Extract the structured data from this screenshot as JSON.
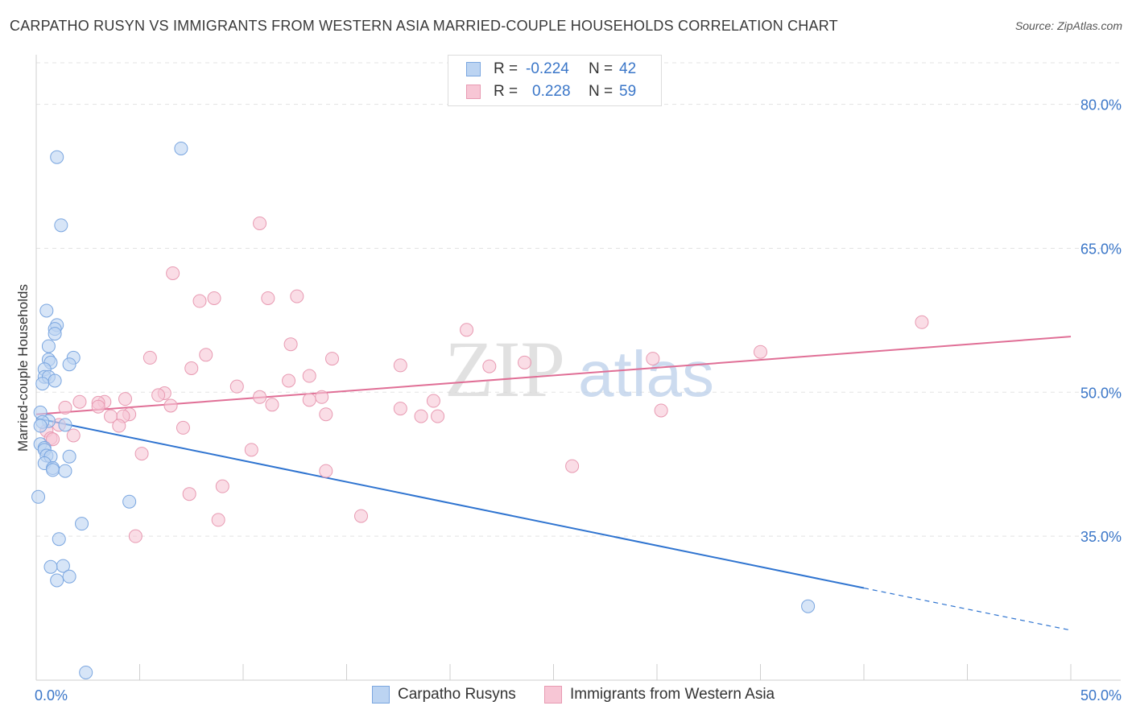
{
  "title": "CARPATHO RUSYN VS IMMIGRANTS FROM WESTERN ASIA MARRIED-COUPLE HOUSEHOLDS CORRELATION CHART",
  "source": "Source: ZipAtlas.com",
  "watermark": {
    "zip": "ZIP",
    "atlas": "atlas"
  },
  "legend": {
    "rows": [
      {
        "r_label": "R =",
        "r_value": "-0.224",
        "n_label": "N =",
        "n_value": "42",
        "color": "blue"
      },
      {
        "r_label": "R =",
        "r_value": "0.228",
        "n_label": "N =",
        "n_value": "59",
        "color": "pink"
      }
    ]
  },
  "bottom_legend": {
    "series1": "Carpatho Rusyns",
    "series2": "Immigrants from Western Asia"
  },
  "colors": {
    "blue_fill": "#bcd4f2",
    "blue_stroke": "#7aa6e0",
    "blue_line": "#2f74d0",
    "pink_fill": "#f7c6d5",
    "pink_stroke": "#e89ab2",
    "pink_line": "#e06f96",
    "tick_text": "#3a76c8",
    "grid": "#e3e3e3"
  },
  "chart_data": {
    "type": "scatter",
    "title": "CARPATHO RUSYN VS IMMIGRANTS FROM WESTERN ASIA MARRIED-COUPLE HOUSEHOLDS CORRELATION CHART",
    "xlabel": "",
    "ylabel": "Married-couple Households",
    "xlim": [
      0,
      50
    ],
    "ylim": [
      20,
      85
    ],
    "x_tick_labels": [
      "0.0%",
      "50.0%"
    ],
    "y_ticks": [
      35,
      50,
      65,
      80
    ],
    "y_tick_labels": [
      "35.0%",
      "50.0%",
      "65.0%",
      "80.0%"
    ],
    "series": [
      {
        "name": "Carpatho Rusyns",
        "color": "blue",
        "r": -0.224,
        "n": 42,
        "trend": {
          "x0": 0,
          "y0": 47.3,
          "x1": 40,
          "y1": 29.6,
          "dash_to_x": 50,
          "dash_to_y": 25.2
        },
        "points": [
          [
            1.0,
            74.5
          ],
          [
            7.0,
            75.4
          ],
          [
            1.2,
            67.4
          ],
          [
            0.5,
            58.5
          ],
          [
            1.0,
            57.0
          ],
          [
            0.9,
            56.6
          ],
          [
            0.9,
            56.1
          ],
          [
            0.6,
            54.8
          ],
          [
            1.8,
            53.6
          ],
          [
            0.6,
            53.4
          ],
          [
            0.7,
            53.1
          ],
          [
            1.6,
            52.9
          ],
          [
            0.4,
            52.4
          ],
          [
            0.4,
            51.6
          ],
          [
            0.6,
            51.6
          ],
          [
            0.9,
            51.2
          ],
          [
            0.3,
            50.9
          ],
          [
            0.2,
            47.9
          ],
          [
            0.6,
            47.0
          ],
          [
            0.3,
            46.9
          ],
          [
            1.4,
            46.6
          ],
          [
            0.2,
            46.5
          ],
          [
            0.2,
            44.6
          ],
          [
            0.4,
            44.2
          ],
          [
            0.4,
            44.0
          ],
          [
            0.5,
            43.4
          ],
          [
            0.7,
            43.3
          ],
          [
            1.6,
            43.3
          ],
          [
            0.4,
            42.6
          ],
          [
            0.8,
            42.1
          ],
          [
            0.8,
            41.9
          ],
          [
            1.4,
            41.8
          ],
          [
            0.1,
            39.1
          ],
          [
            4.5,
            38.6
          ],
          [
            2.2,
            36.3
          ],
          [
            1.1,
            34.7
          ],
          [
            1.3,
            31.9
          ],
          [
            0.7,
            31.8
          ],
          [
            1.6,
            30.8
          ],
          [
            1.0,
            30.4
          ],
          [
            37.3,
            27.7
          ],
          [
            2.4,
            20.8
          ]
        ]
      },
      {
        "name": "Immigrants from Western Asia",
        "color": "pink",
        "r": 0.228,
        "n": 59,
        "trend": {
          "x0": 0,
          "y0": 47.7,
          "x1": 50,
          "y1": 55.8
        },
        "points": [
          [
            10.8,
            67.6
          ],
          [
            6.6,
            62.4
          ],
          [
            12.6,
            60.0
          ],
          [
            11.2,
            59.8
          ],
          [
            8.6,
            59.8
          ],
          [
            7.9,
            59.5
          ],
          [
            42.8,
            57.3
          ],
          [
            20.8,
            56.5
          ],
          [
            12.3,
            55.0
          ],
          [
            35.0,
            54.2
          ],
          [
            8.2,
            53.9
          ],
          [
            5.5,
            53.6
          ],
          [
            14.3,
            53.5
          ],
          [
            29.8,
            53.5
          ],
          [
            23.6,
            53.1
          ],
          [
            17.6,
            52.8
          ],
          [
            21.9,
            52.7
          ],
          [
            7.5,
            52.5
          ],
          [
            13.2,
            51.7
          ],
          [
            12.2,
            51.2
          ],
          [
            9.7,
            50.6
          ],
          [
            6.2,
            49.9
          ],
          [
            5.9,
            49.7
          ],
          [
            10.8,
            49.5
          ],
          [
            13.8,
            49.5
          ],
          [
            4.3,
            49.3
          ],
          [
            13.2,
            49.2
          ],
          [
            19.2,
            49.1
          ],
          [
            2.1,
            49.0
          ],
          [
            3.3,
            49.0
          ],
          [
            3.0,
            48.9
          ],
          [
            11.4,
            48.7
          ],
          [
            6.5,
            48.6
          ],
          [
            3.0,
            48.5
          ],
          [
            1.4,
            48.4
          ],
          [
            17.6,
            48.3
          ],
          [
            30.2,
            48.1
          ],
          [
            14.0,
            47.7
          ],
          [
            4.5,
            47.7
          ],
          [
            3.6,
            47.5
          ],
          [
            18.6,
            47.5
          ],
          [
            4.2,
            47.5
          ],
          [
            19.4,
            47.5
          ],
          [
            1.1,
            46.6
          ],
          [
            4.0,
            46.5
          ],
          [
            7.1,
            46.3
          ],
          [
            0.5,
            46.0
          ],
          [
            1.8,
            45.5
          ],
          [
            0.7,
            45.2
          ],
          [
            0.8,
            45.1
          ],
          [
            10.4,
            44.0
          ],
          [
            5.1,
            43.6
          ],
          [
            25.9,
            42.3
          ],
          [
            14.0,
            41.8
          ],
          [
            9.0,
            40.2
          ],
          [
            7.4,
            39.4
          ],
          [
            15.7,
            37.1
          ],
          [
            8.8,
            36.7
          ],
          [
            4.8,
            35.0
          ]
        ]
      }
    ]
  }
}
